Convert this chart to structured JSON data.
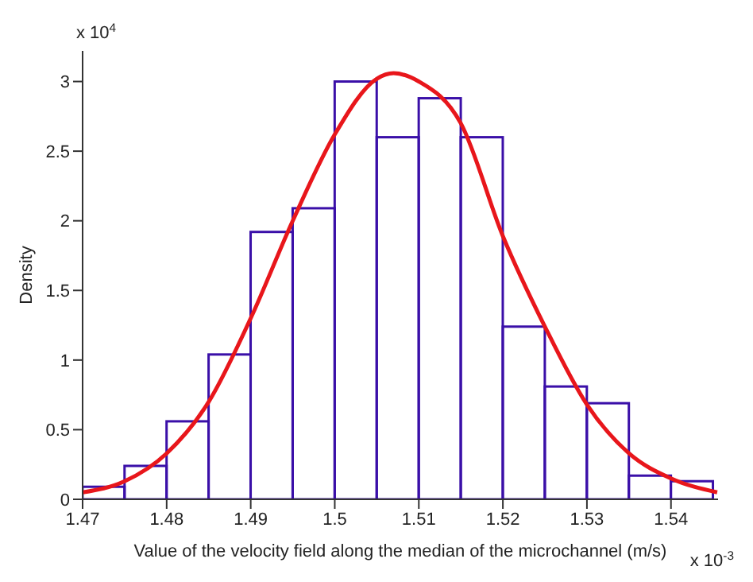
{
  "chart_data": {
    "type": "histogram",
    "xlabel": "Value of the velocity field along the median of the microchannel (m/s)",
    "ylabel": "Density",
    "annotations": [
      "x 10$^{4}$",
      "x 10$^{-3}$"
    ],
    "bins": [
      1.47,
      1.475,
      1.48,
      1.485,
      1.49,
      1.495,
      1.5,
      1.505,
      1.51,
      1.515,
      1.52,
      1.525,
      1.53,
      1.535,
      1.54,
      1.545
    ],
    "values": [
      0.09,
      0.24,
      0.56,
      1.04,
      1.92,
      2.09,
      3.0,
      2.6,
      2.88,
      2.6,
      1.24,
      0.81,
      0.69,
      0.17,
      0.13
    ],
    "color": "#3a0fa8",
    "series": [
      {
        "type": "line",
        "color": "#e8161b",
        "x": [
          1.47,
          1.475,
          1.48,
          1.485,
          1.49,
          1.495,
          1.5,
          1.505,
          1.507,
          1.51,
          1.515,
          1.52,
          1.525,
          1.53,
          1.535,
          1.54,
          1.5455
        ],
        "values": [
          0.05,
          0.13,
          0.33,
          0.7,
          1.3,
          2.0,
          2.62,
          3.02,
          3.06,
          3.0,
          2.7,
          1.89,
          1.24,
          0.68,
          0.33,
          0.15,
          0.05
        ]
      }
    ],
    "xlim": [
      1.47,
      1.5456
    ],
    "ylim": [
      0,
      3.22
    ],
    "xticks": [
      1.47,
      1.48,
      1.49,
      1.5,
      1.51,
      1.52,
      1.53,
      1.54
    ],
    "yticks": [
      0,
      0.5,
      1,
      1.5,
      2,
      2.5,
      3
    ],
    "grid": false,
    "marker": "none",
    "line_style": "solid"
  }
}
